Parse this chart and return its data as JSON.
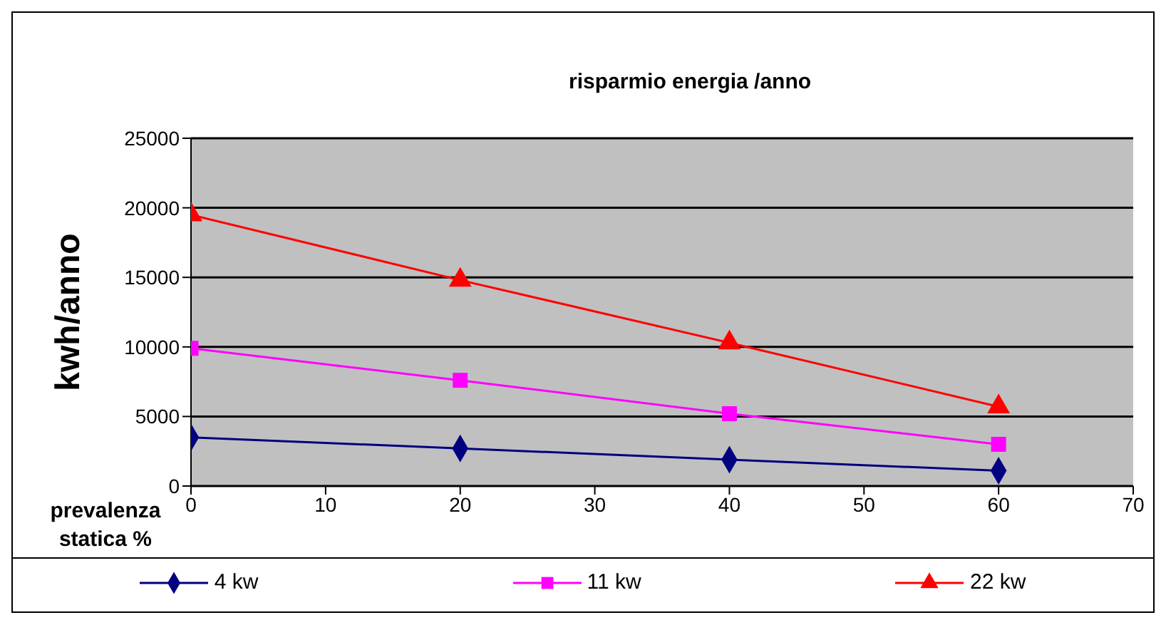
{
  "chart_data": {
    "type": "line",
    "title": "risparmio energia /anno",
    "xlabel": "prevalenza statica %",
    "ylabel": "kwh/anno",
    "x": [
      0,
      20,
      40,
      60
    ],
    "series": [
      {
        "name": "4 kw",
        "color": "#000080",
        "marker": "diamond",
        "values": [
          3500,
          2700,
          1900,
          1100
        ]
      },
      {
        "name": "11 kw",
        "color": "#ff00ff",
        "marker": "square",
        "values": [
          9900,
          7600,
          5200,
          3000
        ]
      },
      {
        "name": "22 kw",
        "color": "#ff0000",
        "marker": "triangle",
        "values": [
          19500,
          14800,
          10300,
          5700
        ]
      }
    ],
    "xlim": [
      0,
      70
    ],
    "xticks": [
      0,
      10,
      20,
      30,
      40,
      50,
      60,
      70
    ],
    "ylim": [
      0,
      25000
    ],
    "yticks": [
      0,
      5000,
      10000,
      15000,
      20000,
      25000
    ],
    "grid": "y",
    "legend": "bottom",
    "line_style": "solid"
  }
}
